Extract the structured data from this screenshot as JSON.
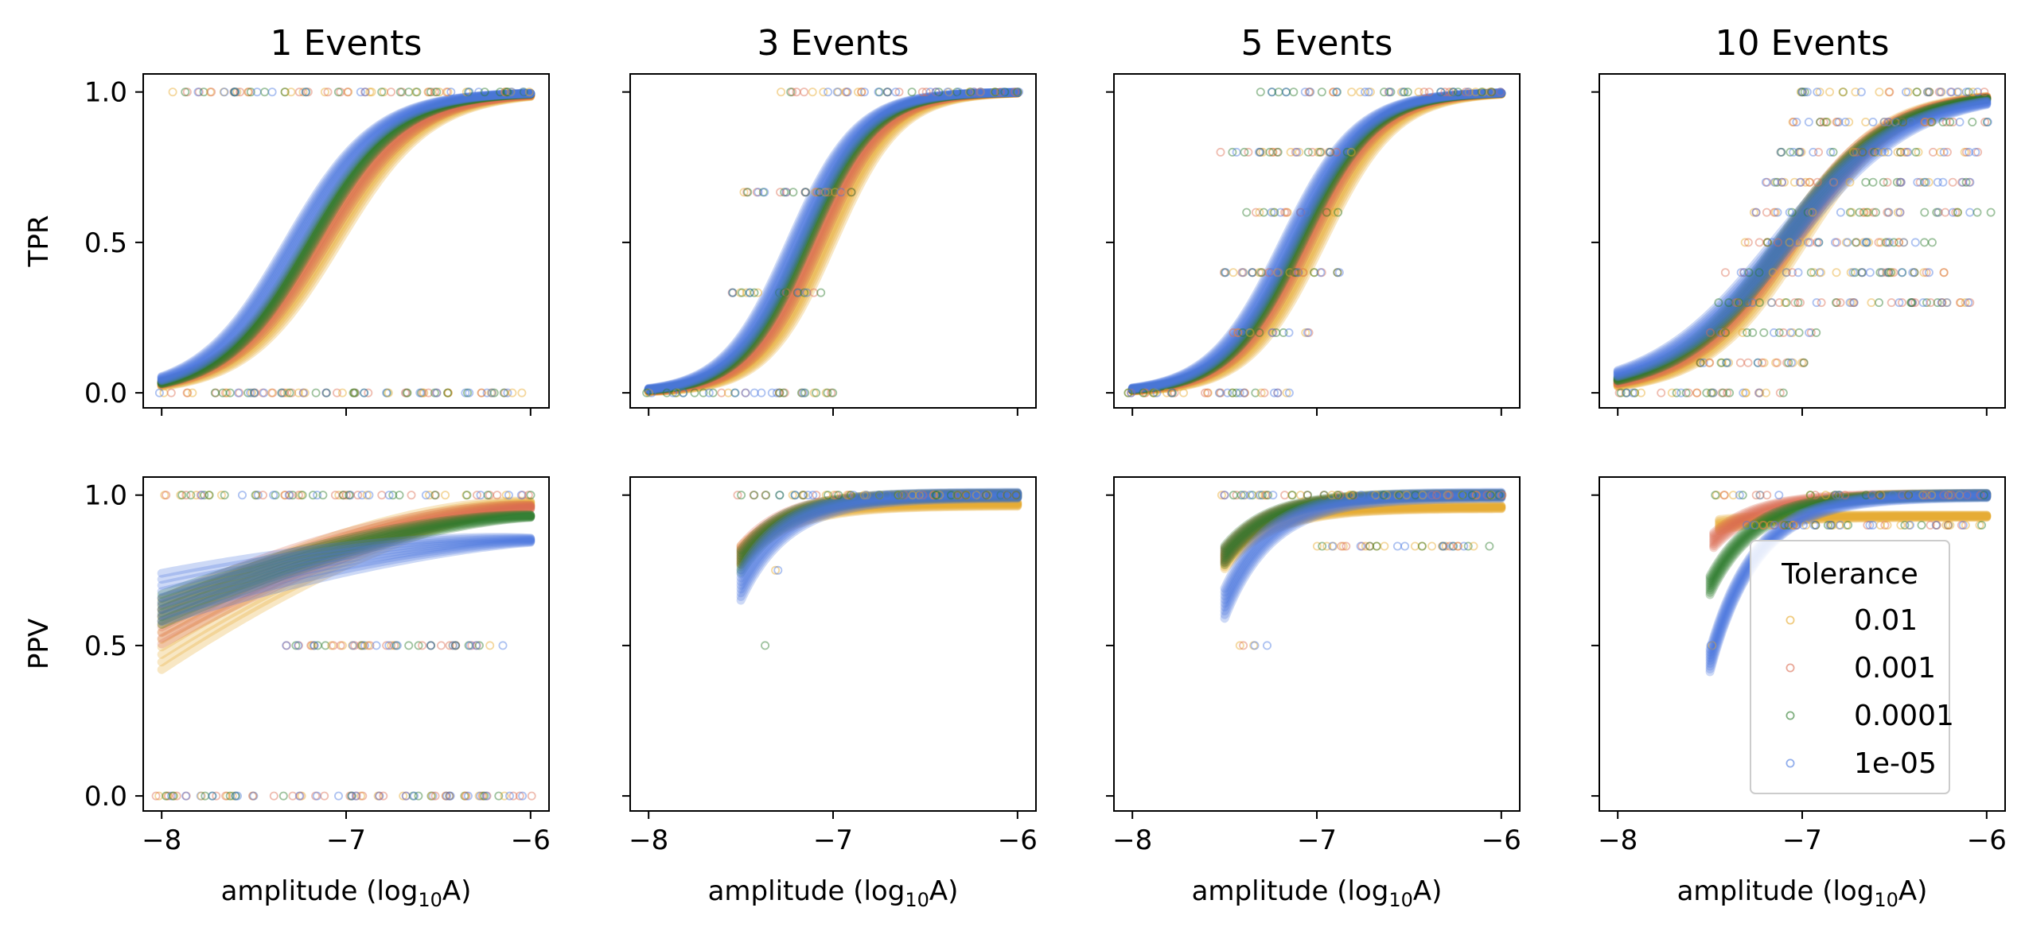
{
  "chart_data": {
    "type": "line",
    "layout": "2x4 grid of panels; rows share y axis, columns share x axis",
    "column_titles": [
      "1 Events",
      "3 Events",
      "5 Events",
      "10 Events"
    ],
    "row_ylabels": [
      "TPR",
      "PPV"
    ],
    "xlabel_prefix": "amplitude (log",
    "xlabel_sub": "10",
    "xlabel_suffix": "A)",
    "xlim": [
      -8.1,
      -5.9
    ],
    "ylim": [
      -0.05,
      1.06
    ],
    "xticks": [
      -8,
      -7,
      -6
    ],
    "xtick_labels": [
      "−8",
      "−7",
      "−6"
    ],
    "yticks": [
      0.0,
      0.5,
      1.0
    ],
    "ytick_labels": [
      "0.0",
      "0.5",
      "1.0"
    ],
    "legend": {
      "title": "Tolerance",
      "placement": "lower-right of bottom-right panel",
      "entries": [
        "0.01",
        "0.001",
        "0.0001",
        "1e-05"
      ]
    },
    "series": [
      {
        "name": "0.01",
        "color": "#e6a92a"
      },
      {
        "name": "0.001",
        "color": "#db6d52"
      },
      {
        "name": "0.0001",
        "color": "#2a7a2a"
      },
      {
        "name": "1e-05",
        "color": "#4a78e0"
      }
    ],
    "panels": [
      {
        "row": 0,
        "col": 0,
        "metric": "TPR",
        "events": 1,
        "curves": [
          {
            "series": "0.01",
            "x0": -7.1,
            "k": 4.0,
            "band": 0.12
          },
          {
            "series": "0.001",
            "x0": -7.15,
            "k": 4.0,
            "band": 0.1
          },
          {
            "series": "0.0001",
            "x0": -7.2,
            "k": 4.2,
            "band": 0.06
          },
          {
            "series": "1e-05",
            "x0": -7.28,
            "k": 4.2,
            "band": 0.08
          }
        ],
        "point_rows": [
          {
            "y": 1.0,
            "x_from": -7.95,
            "x_to": -6.0
          },
          {
            "y": 0.0,
            "x_from": -8.0,
            "x_to": -6.05
          }
        ]
      },
      {
        "row": 0,
        "col": 1,
        "metric": "TPR",
        "events": 3,
        "curves": [
          {
            "series": "0.01",
            "x0": -7.05,
            "k": 5.5,
            "band": 0.1
          },
          {
            "series": "0.001",
            "x0": -7.1,
            "k": 5.5,
            "band": 0.08
          },
          {
            "series": "0.0001",
            "x0": -7.15,
            "k": 5.5,
            "band": 0.05
          },
          {
            "series": "1e-05",
            "x0": -7.2,
            "k": 5.5,
            "band": 0.07
          }
        ],
        "point_rows": [
          {
            "y": 1.0,
            "x_from": -7.3,
            "x_to": -6.0
          },
          {
            "y": 0.667,
            "x_from": -7.45,
            "x_to": -6.9
          },
          {
            "y": 0.333,
            "x_from": -7.55,
            "x_to": -7.05
          },
          {
            "y": 0.0,
            "x_from": -8.0,
            "x_to": -7.0
          }
        ]
      },
      {
        "row": 0,
        "col": 2,
        "metric": "TPR",
        "events": 5,
        "curves": [
          {
            "series": "0.01",
            "x0": -7.02,
            "k": 5.0,
            "band": 0.1
          },
          {
            "series": "0.001",
            "x0": -7.07,
            "k": 5.0,
            "band": 0.08
          },
          {
            "series": "0.0001",
            "x0": -7.1,
            "k": 5.0,
            "band": 0.05
          },
          {
            "series": "1e-05",
            "x0": -7.15,
            "k": 5.0,
            "band": 0.07
          }
        ],
        "point_rows": [
          {
            "y": 1.0,
            "x_from": -7.3,
            "x_to": -6.0
          },
          {
            "y": 0.8,
            "x_from": -7.5,
            "x_to": -6.8
          },
          {
            "y": 0.6,
            "x_from": -7.4,
            "x_to": -6.9
          },
          {
            "y": 0.4,
            "x_from": -7.5,
            "x_to": -6.9
          },
          {
            "y": 0.2,
            "x_from": -7.45,
            "x_to": -7.0
          },
          {
            "y": 0.0,
            "x_from": -8.0,
            "x_to": -7.1
          }
        ]
      },
      {
        "row": 0,
        "col": 3,
        "metric": "TPR",
        "events": 10,
        "curves": [
          {
            "series": "0.01",
            "x0": -7.05,
            "k": 3.8,
            "band": 0.12
          },
          {
            "series": "0.001",
            "x0": -7.08,
            "k": 3.6,
            "band": 0.1
          },
          {
            "series": "0.0001",
            "x0": -7.1,
            "k": 3.4,
            "band": 0.08
          },
          {
            "series": "1e-05",
            "x0": -7.1,
            "k": 3.0,
            "band": 0.12
          }
        ],
        "point_rows": [
          {
            "y": 1.0,
            "x_from": -7.0,
            "x_to": -6.0
          },
          {
            "y": 0.9,
            "x_from": -7.05,
            "x_to": -6.0
          },
          {
            "y": 0.8,
            "x_from": -7.1,
            "x_to": -6.05
          },
          {
            "y": 0.7,
            "x_from": -7.2,
            "x_to": -6.1
          },
          {
            "y": 0.6,
            "x_from": -7.25,
            "x_to": -6.0
          },
          {
            "y": 0.5,
            "x_from": -7.3,
            "x_to": -6.3
          },
          {
            "y": 0.4,
            "x_from": -7.4,
            "x_to": -6.2
          },
          {
            "y": 0.3,
            "x_from": -7.45,
            "x_to": -6.1
          },
          {
            "y": 0.2,
            "x_from": -7.5,
            "x_to": -6.9
          },
          {
            "y": 0.1,
            "x_from": -7.55,
            "x_to": -7.0
          },
          {
            "y": 0.0,
            "x_from": -8.0,
            "x_to": -7.1
          }
        ]
      },
      {
        "row": 1,
        "col": 0,
        "metric": "PPV",
        "events": 1,
        "curves": [
          {
            "series": "0.01",
            "x_start": -8.0,
            "start": 0.52,
            "end": 0.97,
            "shape": "rising",
            "band": 0.2
          },
          {
            "series": "0.001",
            "x_start": -8.0,
            "start": 0.58,
            "end": 0.96,
            "shape": "rising",
            "band": 0.15
          },
          {
            "series": "0.0001",
            "x_start": -8.0,
            "start": 0.62,
            "end": 0.93,
            "shape": "rising",
            "band": 0.1
          },
          {
            "series": "1e-05",
            "x_start": -8.0,
            "start": 0.66,
            "end": 0.85,
            "shape": "rising",
            "band": 0.16
          }
        ],
        "point_rows": [
          {
            "y": 1.0,
            "x_from": -8.0,
            "x_to": -6.0
          },
          {
            "y": 0.5,
            "x_from": -7.3,
            "x_to": -6.15
          },
          {
            "y": 0.0,
            "x_from": -8.0,
            "x_to": -6.0
          }
        ]
      },
      {
        "row": 1,
        "col": 1,
        "metric": "PPV",
        "events": 3,
        "curves": [
          {
            "series": "0.01",
            "x_start": -7.5,
            "start": 0.8,
            "end": 0.97,
            "shape": "saturating",
            "band": 0.05
          },
          {
            "series": "0.001",
            "x_start": -7.5,
            "start": 0.8,
            "end": 1.0,
            "shape": "saturating",
            "band": 0.05
          },
          {
            "series": "0.0001",
            "x_start": -7.5,
            "start": 0.78,
            "end": 1.0,
            "shape": "saturating",
            "band": 0.06
          },
          {
            "series": "1e-05",
            "x_start": -7.5,
            "start": 0.7,
            "end": 1.0,
            "shape": "saturating",
            "band": 0.08
          }
        ],
        "point_rows": [
          {
            "y": 1.0,
            "x_from": -7.5,
            "x_to": -6.0
          },
          {
            "y": 0.75,
            "x_from": -7.3,
            "x_to": -7.3
          },
          {
            "y": 0.5,
            "x_from": -7.37,
            "x_to": -7.37
          }
        ]
      },
      {
        "row": 1,
        "col": 2,
        "metric": "PPV",
        "events": 5,
        "curves": [
          {
            "series": "0.01",
            "x_start": -7.5,
            "start": 0.78,
            "end": 0.96,
            "shape": "saturating",
            "band": 0.04
          },
          {
            "series": "0.001",
            "x_start": -7.5,
            "start": 0.8,
            "end": 1.0,
            "shape": "saturating",
            "band": 0.04
          },
          {
            "series": "0.0001",
            "x_start": -7.5,
            "start": 0.8,
            "end": 1.0,
            "shape": "saturating",
            "band": 0.05
          },
          {
            "series": "1e-05",
            "x_start": -7.5,
            "start": 0.64,
            "end": 1.0,
            "shape": "saturating",
            "band": 0.08
          }
        ],
        "point_rows": [
          {
            "y": 1.0,
            "x_from": -7.5,
            "x_to": -6.0
          },
          {
            "y": 0.83,
            "x_from": -7.0,
            "x_to": -6.05
          },
          {
            "y": 0.5,
            "x_from": -7.4,
            "x_to": -7.25
          }
        ]
      },
      {
        "row": 1,
        "col": 3,
        "metric": "PPV",
        "events": 10,
        "curves": [
          {
            "series": "0.01",
            "x_start": -7.45,
            "start": 0.9,
            "end": 0.93,
            "shape": "saturating",
            "band": 0.03
          },
          {
            "series": "0.001",
            "x_start": -7.48,
            "start": 0.85,
            "end": 1.0,
            "shape": "saturating",
            "band": 0.04
          },
          {
            "series": "0.0001",
            "x_start": -7.5,
            "start": 0.7,
            "end": 1.0,
            "shape": "saturating",
            "band": 0.05
          },
          {
            "series": "1e-05",
            "x_start": -7.5,
            "start": 0.45,
            "end": 1.0,
            "shape": "saturating",
            "band": 0.06
          }
        ],
        "point_rows": [
          {
            "y": 1.0,
            "x_from": -7.45,
            "x_to": -6.0
          },
          {
            "y": 0.9,
            "x_from": -7.3,
            "x_to": -6.0
          },
          {
            "y": 0.5,
            "x_from": -7.5,
            "x_to": -7.45
          }
        ]
      }
    ]
  }
}
